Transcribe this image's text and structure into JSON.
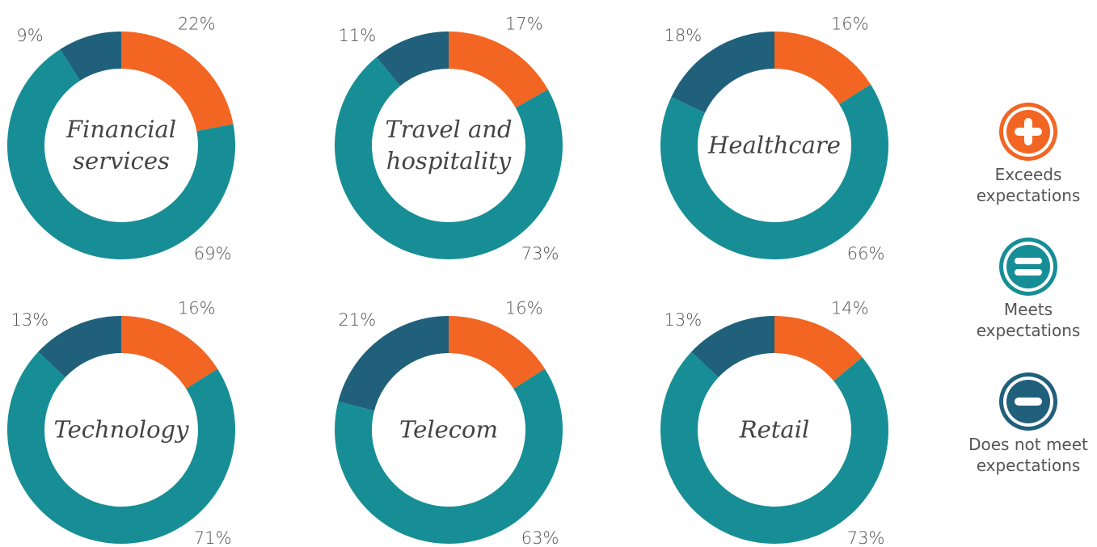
{
  "legend": [
    {
      "label": "Exceeds expectations",
      "color": "#f26522"
    },
    {
      "label": "Meets expectations",
      "color": "#178e95"
    },
    {
      "label": "Does not meet expectations",
      "color": "#20607b"
    }
  ],
  "chart_data": [
    {
      "type": "donut",
      "title": "Financial services",
      "values": [
        22,
        69,
        9
      ],
      "value_labels": [
        "22%",
        "69%",
        "9%"
      ]
    },
    {
      "type": "donut",
      "title": "Travel and hospitality",
      "values": [
        17,
        73,
        11
      ],
      "value_labels": [
        "17%",
        "73%",
        "11%"
      ]
    },
    {
      "type": "donut",
      "title": "Healthcare",
      "values": [
        16,
        66,
        18
      ],
      "value_labels": [
        "16%",
        "66%",
        "18%"
      ]
    },
    {
      "type": "donut",
      "title": "Technology",
      "values": [
        16,
        71,
        13
      ],
      "value_labels": [
        "16%",
        "71%",
        "13%"
      ]
    },
    {
      "type": "donut",
      "title": "Telecom",
      "values": [
        16,
        63,
        21
      ],
      "value_labels": [
        "16%",
        "63%",
        "21%"
      ]
    },
    {
      "type": "donut",
      "title": "Retail",
      "values": [
        14,
        73,
        13
      ],
      "value_labels": [
        "14%",
        "73%",
        "13%"
      ]
    }
  ]
}
